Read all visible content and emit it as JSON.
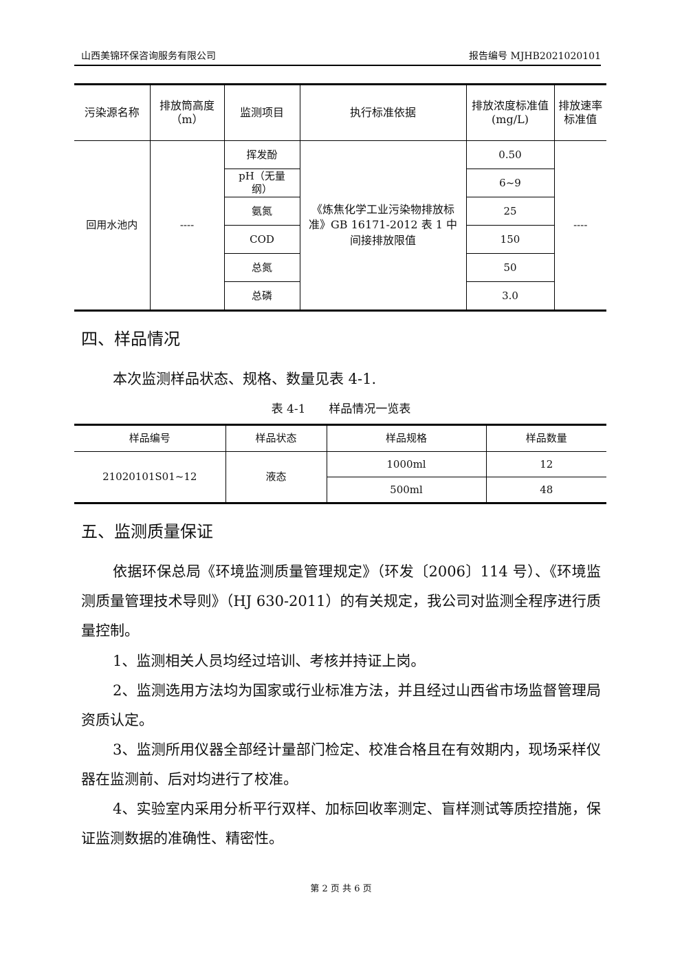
{
  "header": {
    "company": "山西美锦环保咨询服务有限公司",
    "report_no": "报告编号 MJHB2021020101"
  },
  "table1": {
    "headers": [
      "污染源名称",
      "排放筒高度（m）",
      "监测项目",
      "执行标准依据",
      "排放浓度标准值(mg/L)",
      "排放速率标准值"
    ],
    "source": "回用水池内",
    "height": "----",
    "standard": "《炼焦化学工业污染物排放标准》GB 16171-2012 表 1 中间接排放限值",
    "rate": "----",
    "rows": [
      {
        "item": "挥发酚",
        "value": "0.50"
      },
      {
        "item": "pH（无量纲）",
        "value": "6~9"
      },
      {
        "item": "氨氮",
        "value": "25"
      },
      {
        "item": "COD",
        "value": "150"
      },
      {
        "item": "总氮",
        "value": "50"
      },
      {
        "item": "总磷",
        "value": "3.0"
      }
    ]
  },
  "section4": {
    "heading": "四、样品情况",
    "para": "本次监测样品状态、规格、数量见表 4-1.",
    "caption": "表 4-1　　样品情况一览表"
  },
  "table2": {
    "headers": [
      "样品编号",
      "样品状态",
      "样品规格",
      "样品数量"
    ],
    "sample_id": "21020101S01~12",
    "state": "液态",
    "rows": [
      {
        "spec": "1000ml",
        "qty": "12"
      },
      {
        "spec": "500ml",
        "qty": "48"
      }
    ]
  },
  "section5": {
    "heading": "五、监测质量保证",
    "paras": [
      "依据环保总局《环境监测质量管理规定》（环发〔2006〕114 号）、《环境监测质量管理技术导则》（HJ 630-2011）的有关规定，我公司对监测全程序进行质量控制。",
      "1、监测相关人员均经过培训、考核并持证上岗。",
      "2、监测选用方法均为国家或行业标准方法，并且经过山西省市场监督管理局资质认定。",
      "3、监测所用仪器全部经计量部门检定、校准合格且在有效期内，现场采样仪器在监测前、后对均进行了校准。",
      "4、实验室内采用分析平行双样、加标回收率测定、盲样测试等质控措施，保证监测数据的准确性、精密性。"
    ]
  },
  "footer": {
    "page": "第 2 页 共 6 页"
  }
}
